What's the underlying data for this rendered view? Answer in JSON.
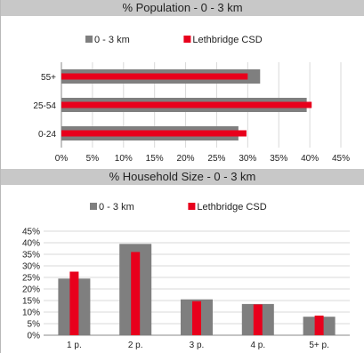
{
  "colors": {
    "series_gray": "#7f7f7f",
    "series_red": "#e8001c",
    "grid": "#d9d9d9",
    "title_bg": "#c8c8c8"
  },
  "chart_data": [
    {
      "type": "bar",
      "orientation": "horizontal",
      "title": "% Population - 0 - 3 km",
      "categories": [
        "55+",
        "25-54",
        "0-24"
      ],
      "series": [
        {
          "name": "0 - 3 km",
          "values": [
            32,
            39.5,
            28.5
          ]
        },
        {
          "name": "Lethbridge CSD",
          "values": [
            30,
            40.3,
            29.8
          ]
        }
      ],
      "xlim": [
        0,
        45
      ],
      "x_ticks": [
        "0%",
        "5%",
        "10%",
        "15%",
        "20%",
        "25%",
        "30%",
        "35%",
        "40%",
        "45%"
      ],
      "legend_position": "top",
      "grid": true
    },
    {
      "type": "bar",
      "orientation": "vertical",
      "title": "% Household Size - 0 - 3 km",
      "categories": [
        "1 p.",
        "2 p.",
        "3 p.",
        "4 p.",
        "5+ p."
      ],
      "series": [
        {
          "name": "0 - 3 km",
          "values": [
            24.5,
            39.5,
            15.5,
            13.5,
            8
          ]
        },
        {
          "name": "Lethbridge CSD",
          "values": [
            27.5,
            36,
            14.7,
            13.3,
            8.5
          ]
        }
      ],
      "ylim": [
        0,
        45
      ],
      "y_ticks": [
        "0%",
        "5%",
        "10%",
        "15%",
        "20%",
        "25%",
        "30%",
        "35%",
        "40%",
        "45%"
      ],
      "legend_position": "top",
      "grid": true
    }
  ]
}
